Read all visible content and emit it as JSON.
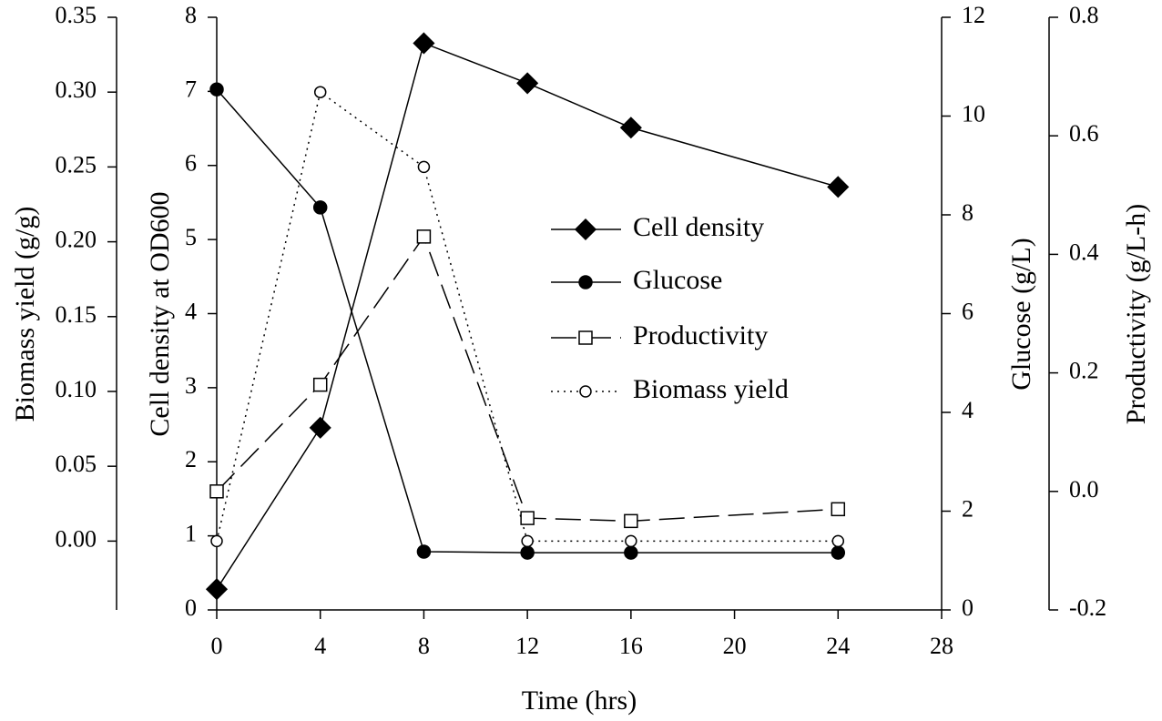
{
  "chart_data": {
    "type": "line",
    "x_label": "Time (hrs)",
    "x": [
      0,
      4,
      8,
      12,
      16,
      24
    ],
    "xlim": [
      0,
      28
    ],
    "xticks": [
      0,
      4,
      8,
      12,
      16,
      20,
      24,
      28
    ],
    "axes": [
      {
        "label": "Biomass yield (g/g)",
        "side": "left",
        "ylim": [
          -0.046,
          0.35
        ],
        "yticks": [
          {
            "value": 0,
            "label": "0.00"
          },
          {
            "value": 0.05,
            "label": "0.05"
          },
          {
            "value": 0.1,
            "label": "0.10"
          },
          {
            "value": 0.15,
            "label": "0.15"
          },
          {
            "value": 0.2,
            "label": "0.20"
          },
          {
            "value": 0.25,
            "label": "0.25"
          },
          {
            "value": 0.3,
            "label": "0.30"
          },
          {
            "value": 0.35,
            "label": "0.35"
          }
        ]
      },
      {
        "label": "Cell density at OD600",
        "side": "left",
        "ylim": [
          0,
          8
        ],
        "yticks": [
          0,
          1,
          2,
          3,
          4,
          5,
          6,
          7,
          8
        ]
      },
      {
        "label": "Glucose (g/L)",
        "side": "right",
        "ylim": [
          0,
          12
        ],
        "yticks": [
          0,
          2,
          4,
          6,
          8,
          10,
          12
        ]
      },
      {
        "label": "Productivity (g/L-h)",
        "side": "right",
        "ylim": [
          -0.2,
          0.8
        ],
        "yticks": [
          -0.2,
          {
            "value": 0,
            "label": "0.0"
          },
          0.2,
          0.4,
          0.6,
          0.8
        ]
      }
    ],
    "series": [
      {
        "name": "Cell density",
        "color": "#000000",
        "axis": 1,
        "marker": "diamond",
        "dash": "solid",
        "values": [
          0.28,
          2.46,
          7.65,
          7.11,
          6.51,
          5.71
        ]
      },
      {
        "name": "Glucose",
        "color": "#000000",
        "axis": 2,
        "marker": "circle-filled",
        "dash": "solid",
        "values": [
          10.54,
          8.15,
          1.18,
          1.16,
          1.16,
          1.16
        ]
      },
      {
        "name": "Productivity",
        "color": "#000000",
        "axis": 3,
        "marker": "square-open",
        "dash": "dash",
        "values": [
          0.0,
          0.18,
          0.43,
          -0.045,
          -0.05,
          -0.03
        ]
      },
      {
        "name": "Biomass yield",
        "color": "#000000",
        "axis": 0,
        "marker": "circle-open",
        "dash": "dot",
        "values": [
          0.0,
          0.3,
          0.25,
          0.0,
          0.0,
          0.0
        ]
      }
    ]
  }
}
